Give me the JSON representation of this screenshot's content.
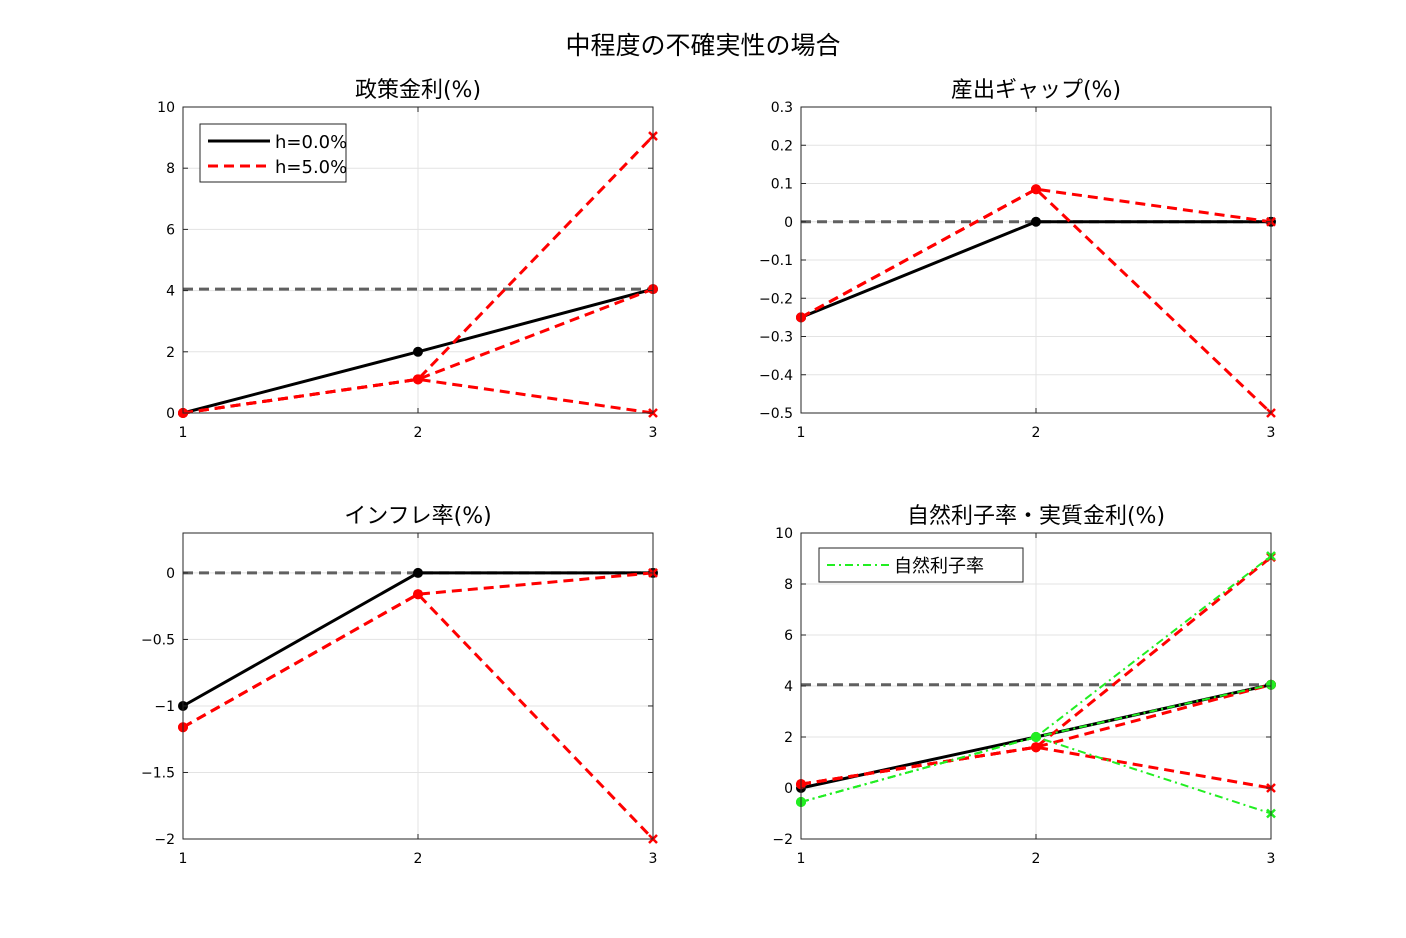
{
  "figure_title": "中程度の不確実性の場合",
  "colors": {
    "baseline": "#000000",
    "uncertain": "#ff0000",
    "natural_rate": "#22ee22",
    "steady_state": "#606060",
    "grid": "#e3e3e3"
  },
  "chart_data": [
    {
      "type": "line",
      "title": "政策金利(%)",
      "xlabel": "",
      "ylabel": "",
      "x": [
        1,
        2,
        3
      ],
      "xlim": [
        1,
        3
      ],
      "ylim": [
        0,
        10
      ],
      "yticks": [
        0,
        2,
        4,
        6,
        8,
        10
      ],
      "grid": true,
      "legend": {
        "placement": "top-left",
        "entries": [
          "h=0.0%",
          "h=5.0%"
        ]
      },
      "steady_state": 4.05,
      "series": [
        {
          "name": "h=0.0%",
          "style": "solid-black",
          "values": [
            0,
            2.0,
            4.05
          ]
        },
        {
          "name": "h=5.0%",
          "style": "dashed-red",
          "branches": [
            [
              0,
              1.1,
              9.05
            ],
            [
              0,
              1.1,
              0
            ],
            [
              0,
              1.1,
              4.05
            ]
          ]
        }
      ]
    },
    {
      "type": "line",
      "title": "産出ギャップ(%)",
      "xlabel": "",
      "ylabel": "",
      "x": [
        1,
        2,
        3
      ],
      "xlim": [
        1,
        3
      ],
      "ylim": [
        -0.5,
        0.3
      ],
      "yticks": [
        -0.5,
        -0.4,
        -0.3,
        -0.2,
        -0.1,
        0,
        0.1,
        0.2,
        0.3
      ],
      "grid": true,
      "steady_state": 0,
      "series": [
        {
          "style": "solid-black",
          "values": [
            -0.25,
            0,
            0
          ]
        },
        {
          "style": "dashed-red",
          "branches": [
            [
              -0.25,
              0.085,
              0
            ],
            [
              -0.25,
              0.085,
              -0.5
            ]
          ]
        }
      ]
    },
    {
      "type": "line",
      "title": "インフレ率(%)",
      "xlabel": "",
      "ylabel": "",
      "x": [
        1,
        2,
        3
      ],
      "xlim": [
        1,
        3
      ],
      "ylim": [
        -2,
        0.3
      ],
      "yticks": [
        -2,
        -1.5,
        -1,
        -0.5,
        0
      ],
      "grid": true,
      "steady_state": 0,
      "series": [
        {
          "style": "solid-black",
          "values": [
            -1.0,
            0,
            0
          ]
        },
        {
          "style": "dashed-red",
          "branches": [
            [
              -1.16,
              -0.16,
              0
            ],
            [
              -1.16,
              -0.16,
              -2.0
            ]
          ]
        }
      ]
    },
    {
      "type": "line",
      "title": "自然利子率・実質金利(%)",
      "xlabel": "",
      "ylabel": "",
      "x": [
        1,
        2,
        3
      ],
      "xlim": [
        1,
        3
      ],
      "ylim": [
        -2,
        10
      ],
      "yticks": [
        -2,
        0,
        2,
        4,
        6,
        8,
        10
      ],
      "grid": true,
      "legend": {
        "placement": "top-left",
        "entries": [
          "自然利子率"
        ]
      },
      "steady_state": 4.05,
      "series": [
        {
          "style": "solid-black",
          "values": [
            0,
            2.0,
            4.05
          ]
        },
        {
          "style": "dashed-red",
          "branches": [
            [
              0.15,
              1.6,
              9.05
            ],
            [
              0.15,
              1.6,
              0
            ],
            [
              0.15,
              1.6,
              4.05
            ]
          ]
        },
        {
          "name": "自然利子率",
          "style": "dashdot-green",
          "branches": [
            [
              -0.55,
              2.0,
              9.1
            ],
            [
              -0.55,
              2.0,
              -1.0
            ],
            [
              -0.55,
              2.0,
              4.05
            ]
          ]
        }
      ]
    }
  ]
}
